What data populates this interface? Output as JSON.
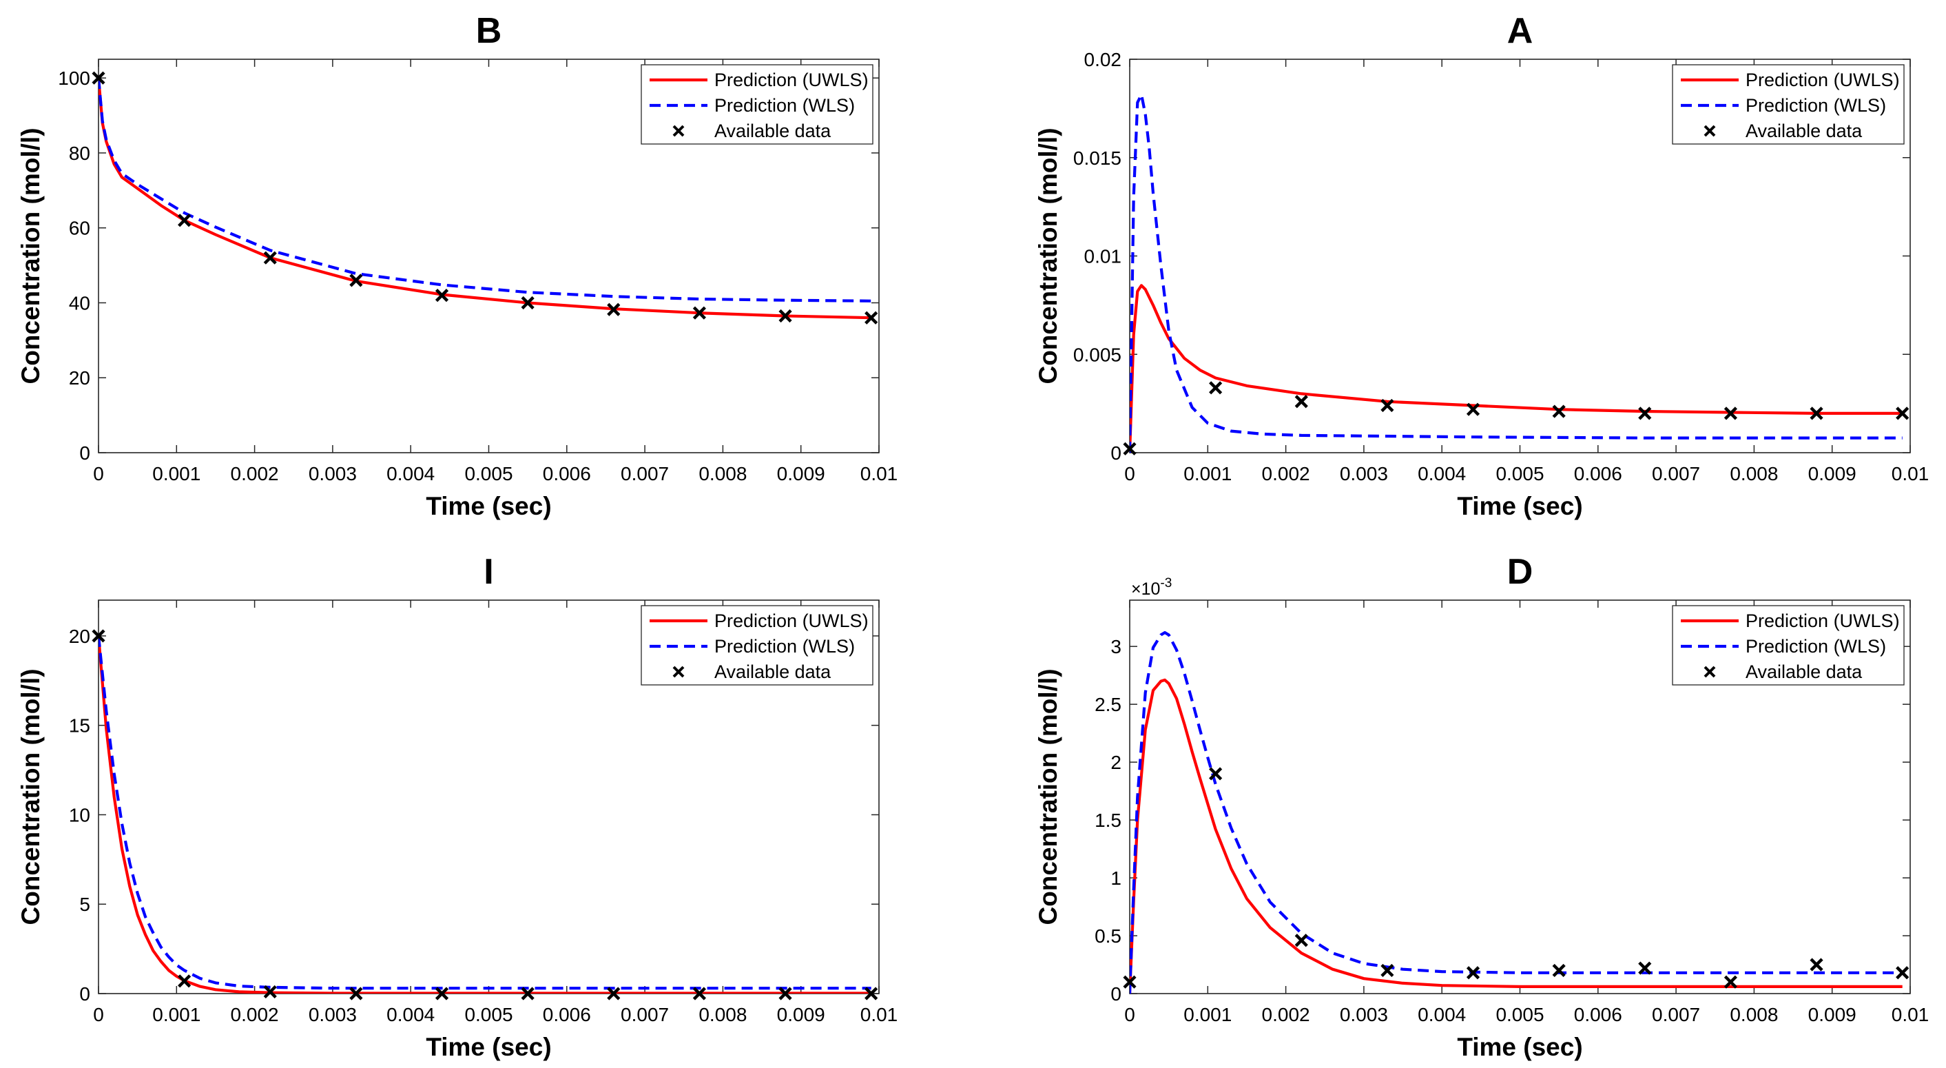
{
  "chart_data": [
    {
      "id": "B",
      "type": "line",
      "title": "B",
      "xlabel": "Time (sec)",
      "ylabel": "Concentration (mol/l)",
      "xlim": [
        0,
        0.01
      ],
      "ylim": [
        0,
        105
      ],
      "xticks": [
        0,
        0.001,
        0.002,
        0.003,
        0.004,
        0.005,
        0.006,
        0.007,
        0.008,
        0.009,
        0.01
      ],
      "xtick_labels": [
        "0",
        "0.001",
        "0.002",
        "0.003",
        "0.004",
        "0.005",
        "0.006",
        "0.007",
        "0.008",
        "0.009",
        "0.01"
      ],
      "yticks": [
        0,
        20,
        40,
        60,
        80,
        100
      ],
      "ytick_labels": [
        "0",
        "20",
        "40",
        "60",
        "80",
        "100"
      ],
      "exponent": null,
      "legend": [
        "Prediction (UWLS)",
        "Prediction (WLS)",
        "Available data"
      ],
      "legend_position": "top-right",
      "series": [
        {
          "name": "Prediction (UWLS)",
          "style": "solid",
          "color": "#ff0000",
          "x": [
            0,
            5e-05,
            0.0001,
            0.0002,
            0.0003,
            0.0005,
            0.0008,
            0.0011,
            0.0015,
            0.0022,
            0.0033,
            0.0044,
            0.0055,
            0.0066,
            0.0077,
            0.0088,
            0.0099
          ],
          "y": [
            100,
            88,
            83,
            77,
            73.5,
            70.5,
            66,
            62,
            58.2,
            52,
            45.8,
            42.2,
            40,
            38.4,
            37.3,
            36.5,
            36
          ]
        },
        {
          "name": "Prediction (WLS)",
          "style": "dashed",
          "color": "#0000ff",
          "x": [
            0,
            5e-05,
            0.0001,
            0.0002,
            0.0003,
            0.0005,
            0.0008,
            0.0011,
            0.0015,
            0.0022,
            0.0033,
            0.0044,
            0.0055,
            0.0066,
            0.0077,
            0.0088,
            0.0099
          ],
          "y": [
            100,
            88.5,
            83.5,
            78,
            74.5,
            71.6,
            67.8,
            64,
            60.2,
            54,
            47.8,
            44.8,
            42.8,
            41.7,
            41,
            40.7,
            40.5
          ]
        },
        {
          "name": "Available data",
          "style": "marker",
          "x": [
            0,
            0.0011,
            0.0022,
            0.0033,
            0.0044,
            0.0055,
            0.0066,
            0.0077,
            0.0088,
            0.0099
          ],
          "y": [
            100,
            62,
            52,
            46,
            42,
            40,
            38.2,
            37.3,
            36.5,
            36
          ]
        }
      ]
    },
    {
      "id": "A",
      "type": "line",
      "title": "A",
      "xlabel": "Time (sec)",
      "ylabel": "Concentration (mol/l)",
      "xlim": [
        0,
        0.01
      ],
      "ylim": [
        0,
        0.02
      ],
      "xticks": [
        0,
        0.001,
        0.002,
        0.003,
        0.004,
        0.005,
        0.006,
        0.007,
        0.008,
        0.009,
        0.01
      ],
      "xtick_labels": [
        "0",
        "0.001",
        "0.002",
        "0.003",
        "0.004",
        "0.005",
        "0.006",
        "0.007",
        "0.008",
        "0.009",
        "0.01"
      ],
      "yticks": [
        0,
        0.005,
        0.01,
        0.015,
        0.02
      ],
      "ytick_labels": [
        "0",
        "0.005",
        "0.01",
        "0.015",
        "0.02"
      ],
      "exponent": null,
      "legend": [
        "Prediction (UWLS)",
        "Prediction (WLS)",
        "Available data"
      ],
      "legend_position": "top-right",
      "series": [
        {
          "name": "Prediction (UWLS)",
          "style": "solid",
          "color": "#ff0000",
          "x": [
            0,
            5e-05,
            0.0001,
            0.00015,
            0.0002,
            0.0003,
            0.0004,
            0.0005,
            0.0007,
            0.0009,
            0.0011,
            0.0015,
            0.0022,
            0.0033,
            0.0044,
            0.0055,
            0.0066,
            0.0077,
            0.0088,
            0.0099
          ],
          "y": [
            0,
            0.006,
            0.0082,
            0.0085,
            0.0083,
            0.0075,
            0.0066,
            0.0058,
            0.0048,
            0.0042,
            0.0038,
            0.0034,
            0.003,
            0.0026,
            0.0024,
            0.0022,
            0.0021,
            0.00205,
            0.002,
            0.002
          ]
        },
        {
          "name": "Prediction (WLS)",
          "style": "dashed",
          "color": "#0000ff",
          "x": [
            0,
            5e-05,
            0.0001,
            0.00015,
            0.0002,
            0.00025,
            0.0003,
            0.0004,
            0.0005,
            0.0006,
            0.0008,
            0.001,
            0.0013,
            0.0017,
            0.0022,
            0.003,
            0.0044,
            0.0066,
            0.0099
          ],
          "y": [
            0,
            0.013,
            0.0178,
            0.0182,
            0.0172,
            0.0155,
            0.0132,
            0.0095,
            0.0062,
            0.0042,
            0.0023,
            0.0015,
            0.0011,
            0.00095,
            0.00088,
            0.00085,
            0.0008,
            0.00075,
            0.00075
          ]
        },
        {
          "name": "Available data",
          "style": "marker",
          "x": [
            0,
            0.0011,
            0.0022,
            0.0033,
            0.0044,
            0.0055,
            0.0066,
            0.0077,
            0.0088,
            0.0099
          ],
          "y": [
            0.0002,
            0.0033,
            0.0026,
            0.0024,
            0.0022,
            0.0021,
            0.002,
            0.002,
            0.002,
            0.002
          ]
        }
      ]
    },
    {
      "id": "I",
      "type": "line",
      "title": "I",
      "xlabel": "Time (sec)",
      "ylabel": "Concentration (mol/l)",
      "xlim": [
        0,
        0.01
      ],
      "ylim": [
        0,
        22
      ],
      "xticks": [
        0,
        0.001,
        0.002,
        0.003,
        0.004,
        0.005,
        0.006,
        0.007,
        0.008,
        0.009,
        0.01
      ],
      "xtick_labels": [
        "0",
        "0.001",
        "0.002",
        "0.003",
        "0.004",
        "0.005",
        "0.006",
        "0.007",
        "0.008",
        "0.009",
        "0.01"
      ],
      "yticks": [
        0,
        5,
        10,
        15,
        20
      ],
      "ytick_labels": [
        "0",
        "5",
        "10",
        "15",
        "20"
      ],
      "exponent": null,
      "legend": [
        "Prediction (UWLS)",
        "Prediction (WLS)",
        "Available data"
      ],
      "legend_position": "top-right",
      "series": [
        {
          "name": "Prediction (UWLS)",
          "style": "solid",
          "color": "#ff0000",
          "x": [
            0,
            0.0001,
            0.0002,
            0.0003,
            0.0004,
            0.0005,
            0.0006,
            0.0007,
            0.0008,
            0.0009,
            0.001,
            0.0011,
            0.0013,
            0.0015,
            0.0018,
            0.0022,
            0.003,
            0.0099
          ],
          "y": [
            20,
            14.8,
            11,
            8.1,
            6,
            4.4,
            3.3,
            2.4,
            1.8,
            1.3,
            0.97,
            0.72,
            0.4,
            0.22,
            0.1,
            0.05,
            0.02,
            0.02
          ]
        },
        {
          "name": "Prediction (WLS)",
          "style": "dashed",
          "color": "#0000ff",
          "x": [
            0,
            0.0001,
            0.0002,
            0.0003,
            0.0004,
            0.0005,
            0.0006,
            0.0007,
            0.0008,
            0.0009,
            0.001,
            0.0011,
            0.0013,
            0.0015,
            0.0018,
            0.0022,
            0.003,
            0.0099
          ],
          "y": [
            20,
            15.8,
            12.3,
            9.5,
            7.3,
            5.6,
            4.3,
            3.4,
            2.6,
            2.05,
            1.6,
            1.3,
            0.85,
            0.6,
            0.42,
            0.35,
            0.3,
            0.3
          ]
        },
        {
          "name": "Available data",
          "style": "marker",
          "x": [
            0,
            0.0011,
            0.0022,
            0.0033,
            0.0044,
            0.0055,
            0.0066,
            0.0077,
            0.0088,
            0.0099
          ],
          "y": [
            20,
            0.7,
            0.1,
            0,
            0,
            0,
            0,
            0,
            0,
            0
          ]
        }
      ]
    },
    {
      "id": "D",
      "type": "line",
      "title": "D",
      "xlabel": "Time (sec)",
      "ylabel": "Concentration (mol/l)",
      "xlim": [
        0,
        0.01
      ],
      "ylim": [
        0,
        0.0034
      ],
      "xticks": [
        0,
        0.001,
        0.002,
        0.003,
        0.004,
        0.005,
        0.006,
        0.007,
        0.008,
        0.009,
        0.01
      ],
      "xtick_labels": [
        "0",
        "0.001",
        "0.002",
        "0.003",
        "0.004",
        "0.005",
        "0.006",
        "0.007",
        "0.008",
        "0.009",
        "0.01"
      ],
      "yticks": [
        0,
        0.0005,
        0.001,
        0.0015,
        0.002,
        0.0025,
        0.003
      ],
      "ytick_labels": [
        "0",
        "0.5",
        "1",
        "1.5",
        "2",
        "2.5",
        "3"
      ],
      "exponent": {
        "base": "×10",
        "power": "-3"
      },
      "legend": [
        "Prediction (UWLS)",
        "Prediction (WLS)",
        "Available data"
      ],
      "legend_position": "top-right",
      "series": [
        {
          "name": "Prediction (UWLS)",
          "style": "solid",
          "color": "#ff0000",
          "x": [
            0,
            5e-05,
            0.0001,
            0.0002,
            0.0003,
            0.0004,
            0.00045,
            0.0005,
            0.0006,
            0.0007,
            0.0008,
            0.0009,
            0.001,
            0.0011,
            0.0013,
            0.0015,
            0.0018,
            0.0022,
            0.0026,
            0.003,
            0.0035,
            0.004,
            0.005,
            0.0099
          ],
          "y": [
            0,
            0.0008,
            0.0015,
            0.00228,
            0.00262,
            0.0027,
            0.00271,
            0.00268,
            0.00255,
            0.00233,
            0.00209,
            0.00186,
            0.00164,
            0.00142,
            0.00108,
            0.00082,
            0.00057,
            0.00035,
            0.00021,
            0.00013,
            9e-05,
            7e-05,
            6e-05,
            6e-05
          ]
        },
        {
          "name": "Prediction (WLS)",
          "style": "dashed",
          "color": "#0000ff",
          "x": [
            0,
            5e-05,
            0.0001,
            0.0002,
            0.0003,
            0.0004,
            0.00045,
            0.0005,
            0.0006,
            0.0007,
            0.0008,
            0.0009,
            0.001,
            0.0011,
            0.0013,
            0.0015,
            0.0018,
            0.0022,
            0.0026,
            0.003,
            0.0035,
            0.004,
            0.005,
            0.0099
          ],
          "y": [
            0,
            0.0009,
            0.0017,
            0.0026,
            0.00299,
            0.0031,
            0.00312,
            0.0031,
            0.00297,
            0.00277,
            0.00253,
            0.00228,
            0.00204,
            0.00181,
            0.00143,
            0.00112,
            0.00079,
            0.00052,
            0.00035,
            0.00026,
            0.00021,
            0.00019,
            0.00018,
            0.00018
          ]
        },
        {
          "name": "Available data",
          "style": "marker",
          "x": [
            0,
            0.0011,
            0.0022,
            0.0033,
            0.0044,
            0.0055,
            0.0066,
            0.0077,
            0.0088,
            0.0099
          ],
          "y": [
            0.0001,
            0.0019,
            0.00046,
            0.0002,
            0.00018,
            0.0002,
            0.00022,
            0.0001,
            0.00025,
            0.00018
          ]
        }
      ]
    }
  ]
}
